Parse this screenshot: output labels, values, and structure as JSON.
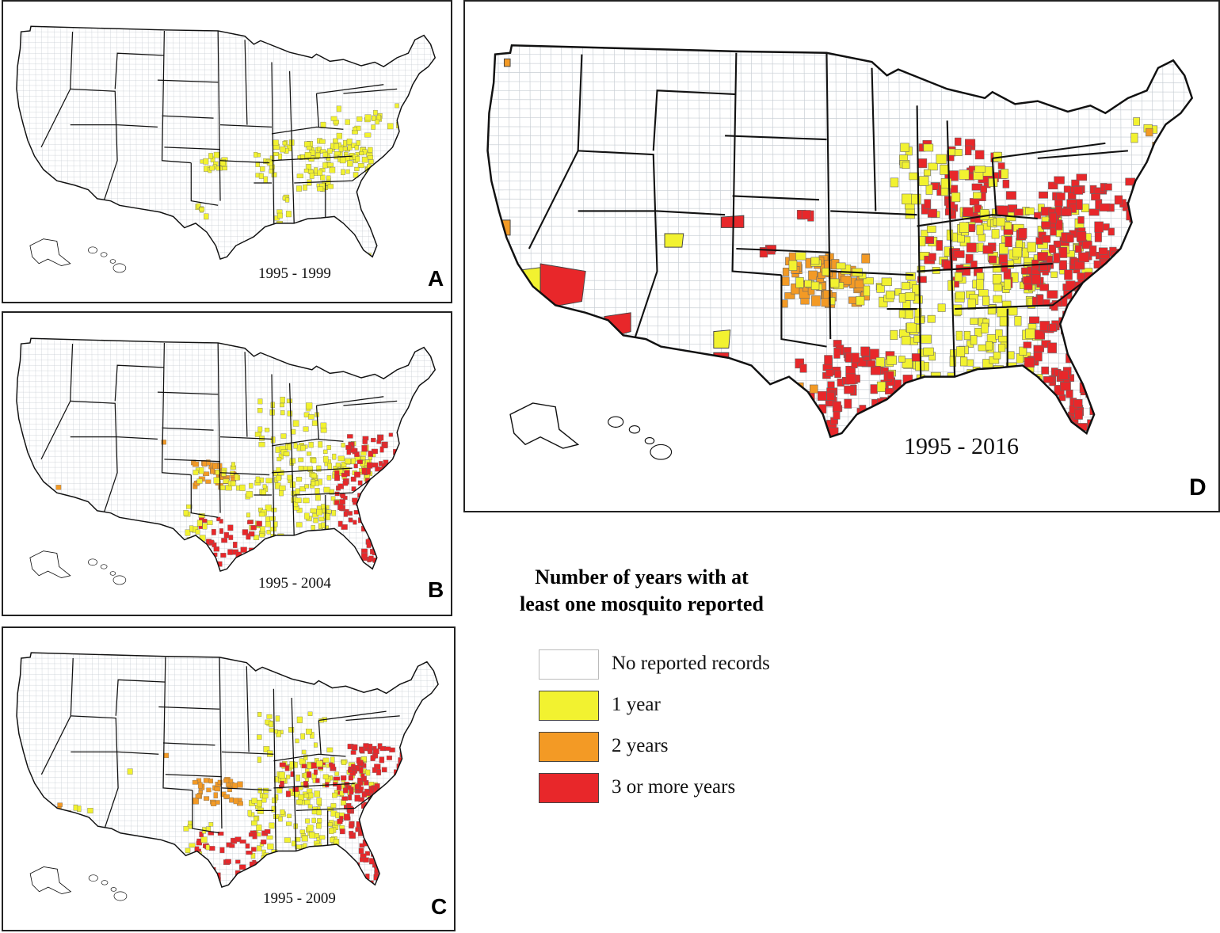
{
  "colors": {
    "none": "#ffffff",
    "one_year": "#f2f230",
    "two_years": "#f39a25",
    "three_plus": "#e8272a"
  },
  "panels": [
    {
      "id": "A",
      "letter": "A",
      "period": "1995 - 1999"
    },
    {
      "id": "B",
      "letter": "B",
      "period": "1995 - 2004"
    },
    {
      "id": "C",
      "letter": "C",
      "period": "1995 - 2009"
    },
    {
      "id": "D",
      "letter": "D",
      "period": "1995 - 2016"
    }
  ],
  "legend": {
    "title_line1": "Number of years with at",
    "title_line2": "least one mosquito reported",
    "items": [
      {
        "key": "none",
        "label": "No reported records"
      },
      {
        "key": "one_year",
        "label": "1 year"
      },
      {
        "key": "two_years",
        "label": "2 years"
      },
      {
        "key": "three_plus",
        "label": "3 or more years"
      }
    ]
  }
}
